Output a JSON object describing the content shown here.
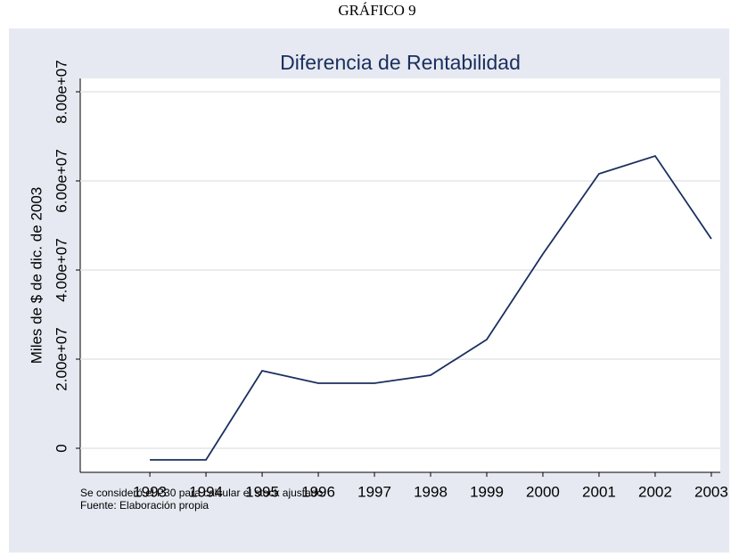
{
  "chart_data": {
    "type": "line",
    "heading": "GRÁFICO 9",
    "title": "Diferencia de Rentabilidad",
    "y_label": "Miles de $ de dic. de 2003",
    "notes": [
      "Se consideró el P30 para calcular el stock ajustado.",
      "Fuente: Elaboración propia"
    ],
    "x": [
      1993,
      1994,
      1995,
      1996,
      1997,
      1998,
      1999,
      2000,
      2001,
      2002,
      2003
    ],
    "series": [
      {
        "name": "Diferencia de Rentabilidad",
        "color": "#1a2f5e",
        "values": [
          -2600000,
          -2600000,
          17400000,
          14600000,
          14600000,
          16400000,
          24400000,
          43600000,
          61600000,
          65600000,
          47000000
        ]
      }
    ],
    "xlim": [
      1991.76,
      2003.16
    ],
    "xticks": [
      1993,
      1994,
      1995,
      1996,
      1997,
      1998,
      1999,
      2000,
      2001,
      2002,
      2003
    ],
    "ylim": [
      -5400000,
      83000000
    ],
    "yticks": [
      0,
      {
        "value": 20000000,
        "label": "2.00e+07"
      },
      {
        "value": 40000000,
        "label": "4.00e+07"
      },
      {
        "value": 60000000,
        "label": "6.00e+07"
      },
      {
        "value": 80000000,
        "label": "8.00e+07"
      }
    ],
    "grid": true
  }
}
